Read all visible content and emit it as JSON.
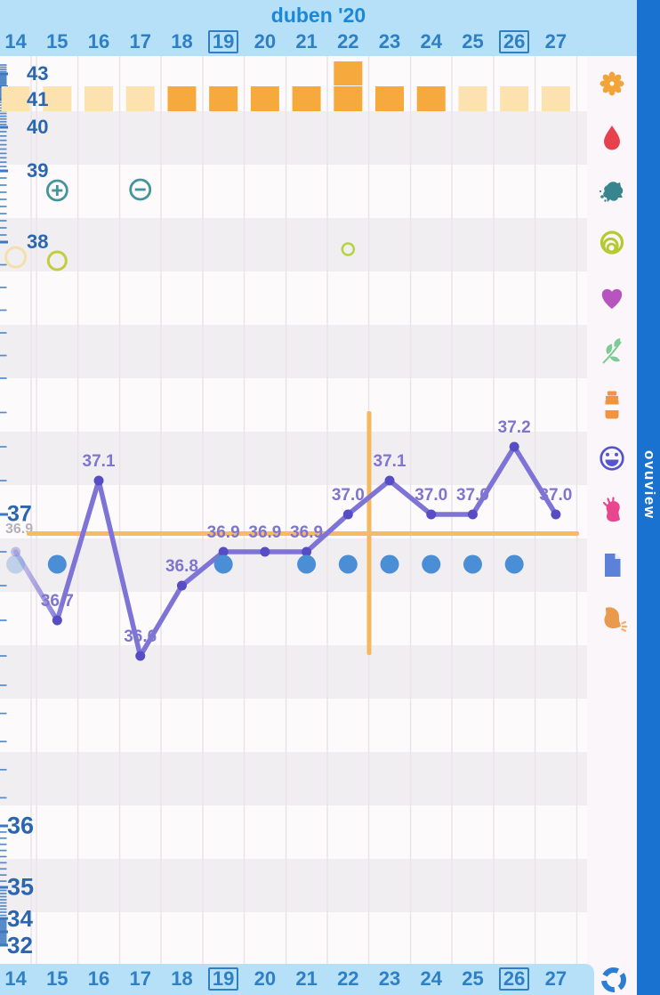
{
  "header": {
    "title": "duben '20"
  },
  "date_row": {
    "days": [
      "14",
      "15",
      "16",
      "17",
      "18",
      "19",
      "20",
      "21",
      "22",
      "23",
      "24",
      "25",
      "26",
      "27"
    ],
    "boxed_days": [
      "19",
      "26"
    ]
  },
  "axis": {
    "labels": [
      "43",
      "41",
      "40",
      "39",
      "38",
      "37",
      "36",
      "35",
      "34",
      "32"
    ]
  },
  "coverline": {
    "label": "36.9"
  },
  "brand": {
    "label": "ovuview",
    "bar_color": "#1a72d0"
  },
  "sidebar": {
    "icons": [
      {
        "name": "flower-icon",
        "color": "#f2a438"
      },
      {
        "name": "blood-drop-icon",
        "color": "#e8414e"
      },
      {
        "name": "splat-icon",
        "color": "#37858e"
      },
      {
        "name": "spiral-icon",
        "color": "#b6c930"
      },
      {
        "name": "heart-icon",
        "color": "#b655bd"
      },
      {
        "name": "leaf-icon",
        "color": "#7ecb96"
      },
      {
        "name": "medicine-bottle-icon",
        "color": "#f0953e"
      },
      {
        "name": "smiley-icon",
        "color": "#5556cc"
      },
      {
        "name": "shout-icon",
        "color": "#e8468e"
      },
      {
        "name": "note-icon",
        "color": "#5b82d8"
      },
      {
        "name": "breastfeeding-icon",
        "color": "#ea9a4c"
      }
    ]
  },
  "chart_data": {
    "type": "line",
    "title": "duben '20",
    "x": [
      14,
      15,
      16,
      17,
      18,
      19,
      20,
      21,
      22,
      23,
      24,
      25,
      26,
      27
    ],
    "ylim": [
      32,
      43
    ],
    "y_ticks": [
      43,
      41,
      40,
      39,
      38,
      37,
      36,
      35,
      34,
      32
    ],
    "series": [
      {
        "name": "basal-body-temperature-celsius",
        "color": "#7d74d6",
        "values": [
          36.9,
          36.7,
          37.1,
          36.6,
          36.8,
          36.9,
          36.9,
          36.9,
          37.0,
          37.1,
          37.0,
          37.0,
          37.2,
          37.0
        ],
        "point_labels": [
          "",
          "36.7",
          "37.1",
          "36.6",
          "36.8",
          "36.9",
          "36.9",
          "36.9",
          "37.0",
          "37.1",
          "37.0",
          "37.0",
          "37.2",
          "37.0"
        ],
        "faded_days": [
          14
        ]
      }
    ],
    "coverline": {
      "value": 36.9,
      "color": "#f8bb63"
    },
    "ovulation_line": {
      "between_days": [
        22,
        23
      ],
      "color": "#f5b860"
    },
    "menstruation": {
      "light_days": [
        14,
        15,
        16,
        17,
        25,
        26,
        27
      ],
      "heavy_days": [
        18,
        19,
        20,
        21,
        22,
        23,
        24
      ],
      "double_square_day": 22,
      "light_color": "#fbe2af",
      "heavy_color": "#f6a93c"
    },
    "intercourse": {
      "days": [
        15,
        19,
        21,
        22,
        23,
        24,
        25,
        26
      ],
      "faded_days": [
        14
      ],
      "color": "#4a8ed6"
    },
    "symbols": [
      {
        "day": 15,
        "row_value": 39,
        "symbol": "plus-circle",
        "color": "#44949c"
      },
      {
        "day": 17,
        "row_value": 39,
        "symbol": "minus-circle",
        "color": "#44949c"
      },
      {
        "day": 14,
        "row_value": 38,
        "symbol": "circle-faded",
        "color": "#f5dfab"
      },
      {
        "day": 15,
        "row_value": 38,
        "symbol": "circle",
        "color": "#c2cc3c"
      },
      {
        "day": 22,
        "row_value": 38,
        "symbol": "small-circle",
        "color": "#b5d243"
      }
    ]
  }
}
